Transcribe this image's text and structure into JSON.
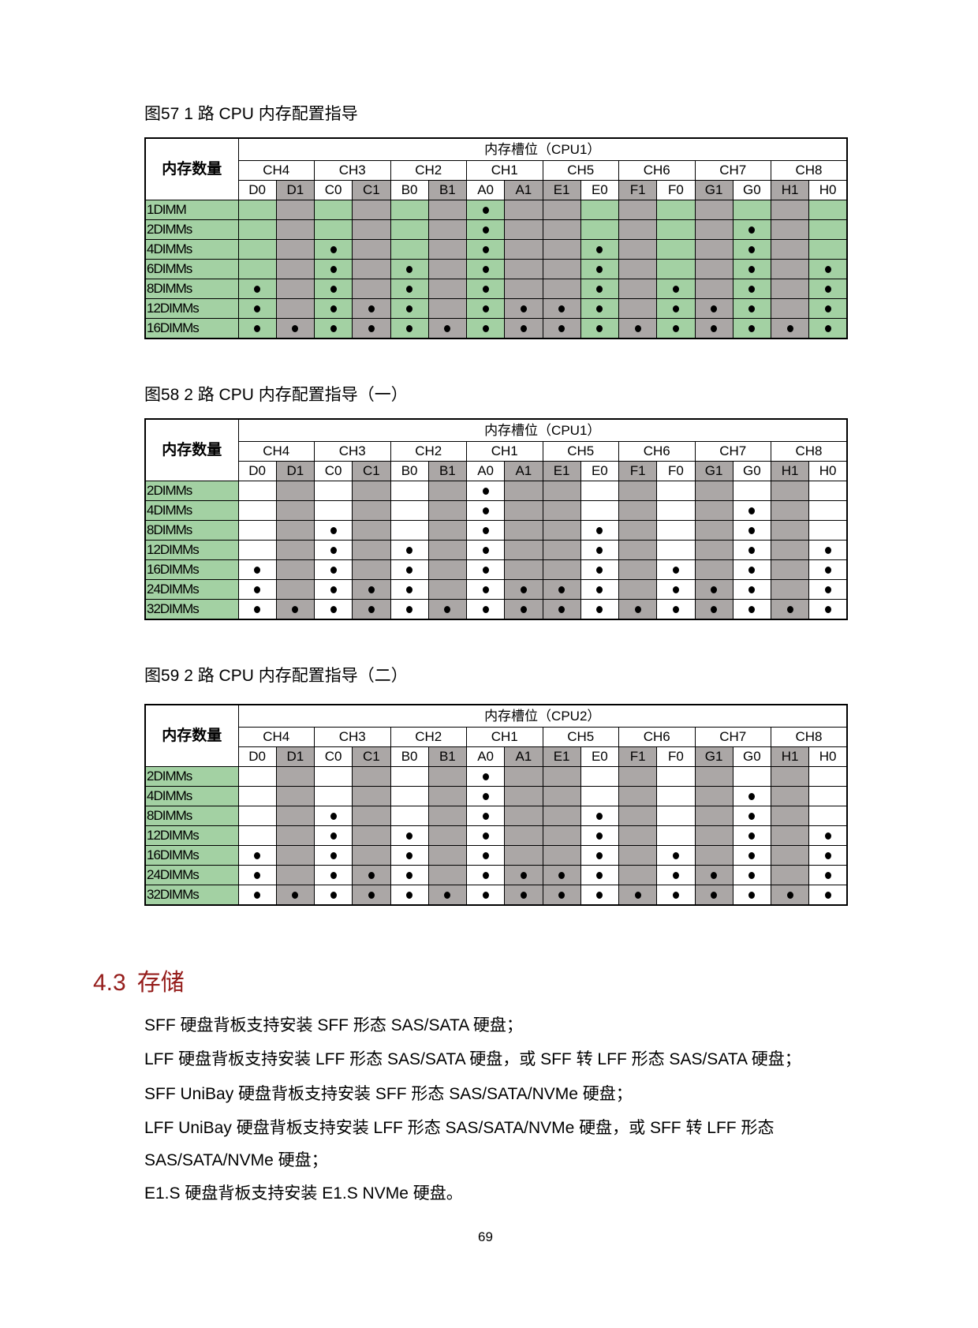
{
  "slots": [
    "D0",
    "D1",
    "C0",
    "C1",
    "B0",
    "B1",
    "A0",
    "A1",
    "E1",
    "E0",
    "F1",
    "F0",
    "G1",
    "G0",
    "H1",
    "H0"
  ],
  "gray_slots": [
    "D1",
    "C1",
    "B1",
    "A1",
    "E1",
    "F1",
    "G1",
    "H1"
  ],
  "channels": [
    "CH4",
    "CH3",
    "CH2",
    "CH1",
    "CH5",
    "CH6",
    "CH7",
    "CH8"
  ],
  "colors": {
    "green": "#a3d1a3",
    "gray": "#aba7a6",
    "heading": "#951d1b"
  },
  "row_header": "内存数量",
  "tables": [
    {
      "caption": "图57 1 路 CPU 内存配置指导",
      "slot_header": "内存槽位（CPU1）",
      "body_fill": "green",
      "rows": [
        {
          "label": "1DIMM",
          "populated": [
            "A0"
          ]
        },
        {
          "label": "2DIMMs",
          "populated": [
            "A0",
            "G0"
          ]
        },
        {
          "label": "4DIMMs",
          "populated": [
            "C0",
            "A0",
            "E0",
            "G0"
          ]
        },
        {
          "label": "6DIMMs",
          "populated": [
            "C0",
            "B0",
            "A0",
            "E0",
            "G0",
            "H0"
          ]
        },
        {
          "label": "8DIMMs",
          "populated": [
            "D0",
            "C0",
            "B0",
            "A0",
            "E0",
            "F0",
            "G0",
            "H0"
          ]
        },
        {
          "label": "12DIMMs",
          "populated": [
            "D0",
            "C0",
            "C1",
            "B0",
            "A0",
            "A1",
            "E1",
            "E0",
            "F0",
            "G1",
            "G0",
            "H0"
          ]
        },
        {
          "label": "16DIMMs",
          "populated": [
            "D0",
            "D1",
            "C0",
            "C1",
            "B0",
            "B1",
            "A0",
            "A1",
            "E1",
            "E0",
            "F1",
            "F0",
            "G1",
            "G0",
            "H1",
            "H0"
          ]
        }
      ]
    },
    {
      "caption": "图58 2 路 CPU 内存配置指导（一）",
      "slot_header": "内存槽位（CPU1）",
      "body_fill": "white",
      "rows": [
        {
          "label": "2DIMMs",
          "populated": [
            "A0"
          ]
        },
        {
          "label": "4DIMMs",
          "populated": [
            "A0",
            "G0"
          ]
        },
        {
          "label": "8DIMMs",
          "populated": [
            "C0",
            "A0",
            "E0",
            "G0"
          ]
        },
        {
          "label": "12DIMMs",
          "populated": [
            "C0",
            "B0",
            "A0",
            "E0",
            "G0",
            "H0"
          ]
        },
        {
          "label": "16DIMMs",
          "populated": [
            "D0",
            "C0",
            "B0",
            "A0",
            "E0",
            "F0",
            "G0",
            "H0"
          ]
        },
        {
          "label": "24DIMMs",
          "populated": [
            "D0",
            "C0",
            "C1",
            "B0",
            "A0",
            "A1",
            "E1",
            "E0",
            "F0",
            "G1",
            "G0",
            "H0"
          ]
        },
        {
          "label": "32DIMMs",
          "populated": [
            "D0",
            "D1",
            "C0",
            "C1",
            "B0",
            "B1",
            "A0",
            "A1",
            "E1",
            "E0",
            "F1",
            "F0",
            "G1",
            "G0",
            "H1",
            "H0"
          ]
        }
      ]
    },
    {
      "caption": "图59 2 路 CPU 内存配置指导（二）",
      "slot_header": "内存槽位（CPU2）",
      "body_fill": "white",
      "rows": [
        {
          "label": "2DIMMs",
          "populated": [
            "A0"
          ]
        },
        {
          "label": "4DIMMs",
          "populated": [
            "A0",
            "G0"
          ]
        },
        {
          "label": "8DIMMs",
          "populated": [
            "C0",
            "A0",
            "E0",
            "G0"
          ]
        },
        {
          "label": "12DIMMs",
          "populated": [
            "C0",
            "B0",
            "A0",
            "E0",
            "G0",
            "H0"
          ]
        },
        {
          "label": "16DIMMs",
          "populated": [
            "D0",
            "C0",
            "B0",
            "A0",
            "E0",
            "F0",
            "G0",
            "H0"
          ]
        },
        {
          "label": "24DIMMs",
          "populated": [
            "D0",
            "C0",
            "C1",
            "B0",
            "A0",
            "A1",
            "E1",
            "E0",
            "F0",
            "G1",
            "G0",
            "H0"
          ]
        },
        {
          "label": "32DIMMs",
          "populated": [
            "D0",
            "D1",
            "C0",
            "C1",
            "B0",
            "B1",
            "A0",
            "A1",
            "E1",
            "E0",
            "F1",
            "F0",
            "G1",
            "G0",
            "H1",
            "H0"
          ]
        }
      ]
    }
  ],
  "section": {
    "number": "4.3",
    "title": "存储"
  },
  "paragraphs": [
    "SFF 硬盘背板支持安装 SFF 形态 SAS/SATA 硬盘；",
    "LFF 硬盘背板支持安装 LFF 形态 SAS/SATA 硬盘，或 SFF 转 LFF 形态 SAS/SATA 硬盘；",
    "SFF UniBay 硬盘背板支持安装 SFF 形态 SAS/SATA/NVMe 硬盘；",
    "LFF UniBay 硬盘背板支持安装 LFF 形态 SAS/SATA/NVMe 硬盘，或 SFF 转 LFF 形态",
    "SAS/SATA/NVMe 硬盘；",
    "E1.S 硬盘背板支持安装 E1.S NVMe 硬盘。"
  ],
  "page_number": "69"
}
